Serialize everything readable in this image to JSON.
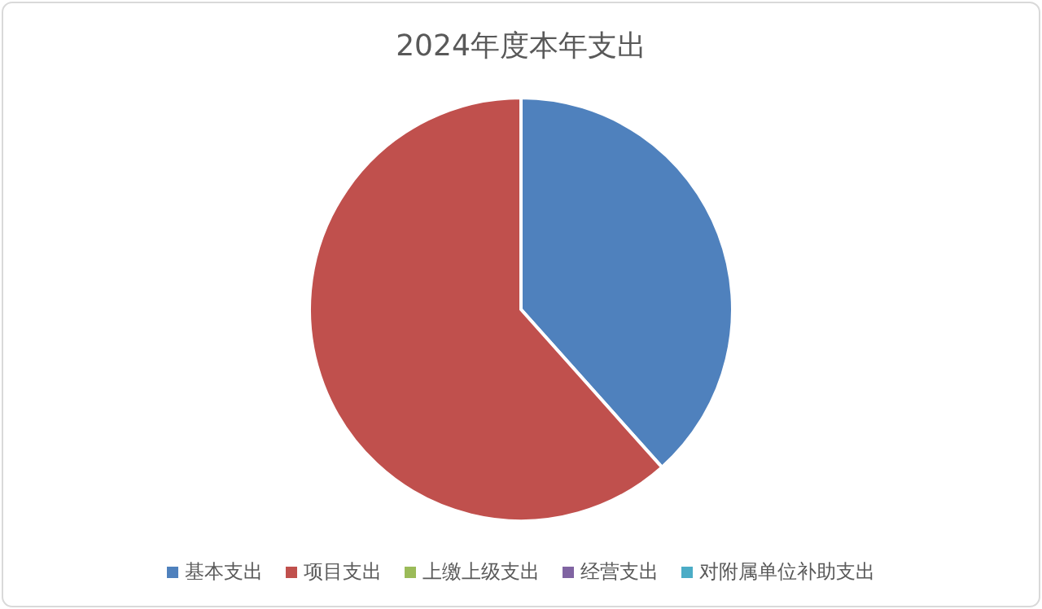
{
  "chart_data": {
    "type": "pie",
    "title": "2024年度本年支出",
    "categories": [
      "基本支出",
      "项目支出",
      "上缴上级支出",
      "经营支出",
      "对附属单位补助支出"
    ],
    "values": [
      38.4,
      61.6,
      0,
      0,
      0
    ],
    "colors": [
      "#4f81bd",
      "#c0504d",
      "#9bbb59",
      "#8064a2",
      "#4bacc6"
    ],
    "legend": "bottom"
  }
}
